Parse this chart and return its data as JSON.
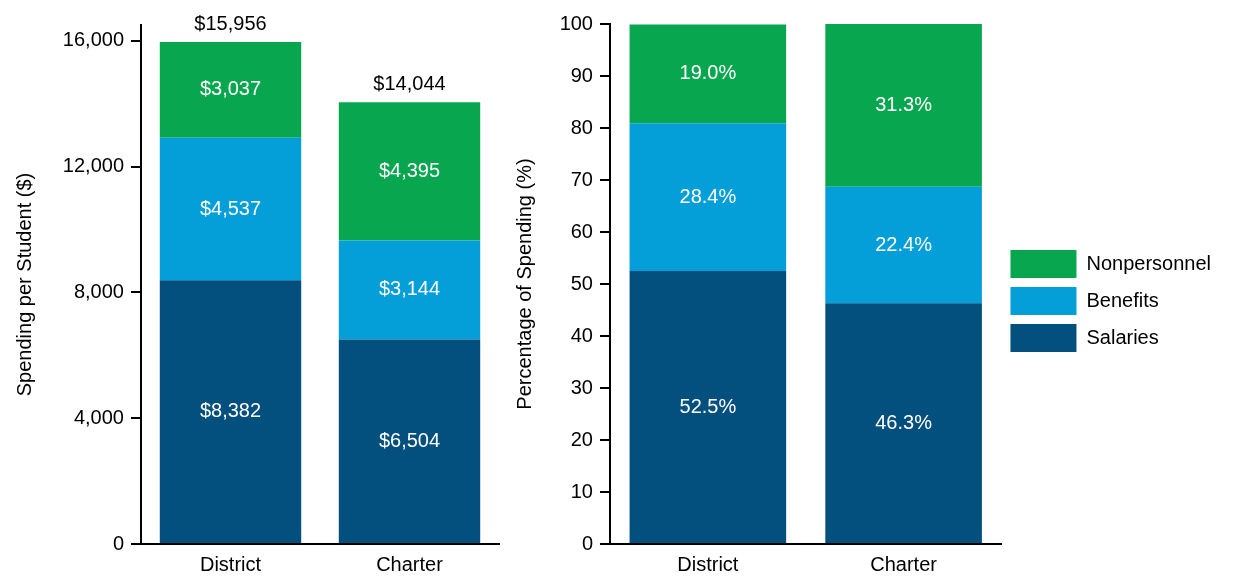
{
  "chart_data": [
    {
      "type": "bar",
      "stacked": true,
      "categories": [
        "District",
        "Charter"
      ],
      "ylabel": "Spending per Student ($)",
      "ylim": [
        0,
        16500
      ],
      "yticks": [
        0,
        {
          "value": 4000,
          "label": "4,000"
        },
        {
          "value": 8000,
          "label": "8,000"
        },
        {
          "value": 12000,
          "label": "12,000"
        },
        {
          "value": 16000,
          "label": "16,000"
        }
      ],
      "series": [
        {
          "color": "#034f7e",
          "values": [
            8382,
            6504
          ],
          "value_labels": [
            "$8,382",
            "$6,504"
          ]
        },
        {
          "color": "#049fd9",
          "values": [
            4537,
            3144
          ],
          "value_labels": [
            "$4,537",
            "$3,144"
          ]
        },
        {
          "color": "#08a74f",
          "values": [
            3037,
            4395
          ],
          "value_labels": [
            "$3,037",
            "$4,395"
          ]
        }
      ],
      "totals": [
        "$15,956",
        "$14,044"
      ]
    },
    {
      "type": "bar",
      "stacked": true,
      "categories": [
        "District",
        "Charter"
      ],
      "ylabel": "Percentage of Spending (%)",
      "ylim": [
        0,
        100
      ],
      "yticks": [
        0,
        10,
        20,
        30,
        40,
        50,
        60,
        70,
        80,
        90,
        100
      ],
      "series": [
        {
          "name": "Salaries",
          "color": "#034f7e",
          "values": [
            52.5,
            46.3
          ],
          "value_labels": [
            "52.5%",
            "46.3%"
          ]
        },
        {
          "name": "Benefits",
          "color": "#049fd9",
          "values": [
            28.4,
            22.4
          ],
          "value_labels": [
            "28.4%",
            "22.4%"
          ]
        },
        {
          "name": "Nonpersonnel",
          "color": "#08a74f",
          "values": [
            19.0,
            31.3
          ],
          "value_labels": [
            "19.0%",
            "31.3%"
          ]
        }
      ],
      "legend": "right"
    }
  ]
}
